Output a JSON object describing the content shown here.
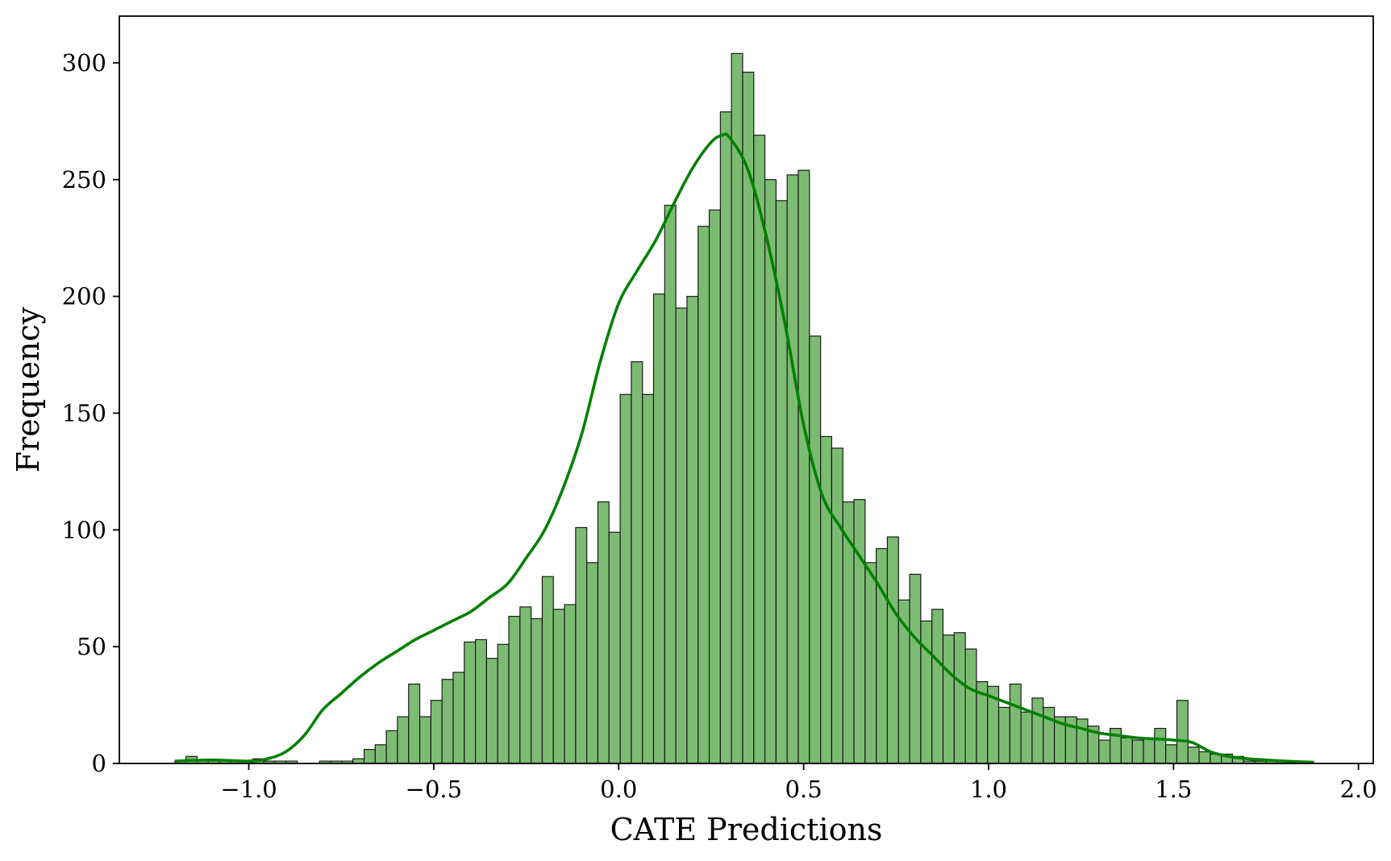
{
  "chart_data": {
    "type": "bar",
    "title": "",
    "xlabel": "CATE Predictions",
    "ylabel": "Frequency",
    "xlim": [
      -1.35,
      2.04
    ],
    "ylim": [
      0,
      320
    ],
    "xticks": [
      -1.0,
      -0.5,
      0.0,
      0.5,
      1.0,
      1.5,
      2.0
    ],
    "xtick_labels": [
      "−1.0",
      "−0.5",
      "0.0",
      "0.5",
      "1.0",
      "1.5",
      "2.0"
    ],
    "yticks": [
      0,
      50,
      100,
      150,
      200,
      250,
      300
    ],
    "ytick_labels": [
      "0",
      "50",
      "100",
      "150",
      "200",
      "250",
      "300"
    ],
    "bin_start": -1.2,
    "bin_width": 0.0301,
    "grid": false,
    "legend": false,
    "colors": {
      "bar": "#7cbc72",
      "bar_edge": "#1a1a1a",
      "kde": "#008000"
    },
    "values": [
      1,
      3,
      1,
      1,
      1,
      1,
      1,
      2,
      1,
      1,
      1,
      0,
      0,
      1,
      1,
      1,
      2,
      6,
      8,
      14,
      20,
      34,
      20,
      27,
      36,
      39,
      52,
      53,
      45,
      51,
      63,
      67,
      62,
      80,
      66,
      68,
      101,
      86,
      112,
      99,
      158,
      172,
      158,
      201,
      239,
      195,
      200,
      230,
      237,
      279,
      304,
      296,
      269,
      250,
      241,
      252,
      254,
      183,
      140,
      135,
      112,
      113,
      86,
      92,
      97,
      70,
      81,
      61,
      66,
      55,
      56,
      49,
      35,
      33,
      24,
      34,
      22,
      28,
      24,
      20,
      20,
      19,
      16,
      10,
      15,
      11,
      10,
      11,
      15,
      8,
      27,
      7,
      5,
      4,
      4,
      3,
      1,
      1,
      1,
      1,
      1,
      1
    ],
    "kde": {
      "x": [
        -1.2,
        -1.1,
        -1.0,
        -0.95,
        -0.9,
        -0.85,
        -0.8,
        -0.75,
        -0.7,
        -0.65,
        -0.6,
        -0.55,
        -0.5,
        -0.45,
        -0.4,
        -0.35,
        -0.3,
        -0.25,
        -0.2,
        -0.15,
        -0.1,
        -0.05,
        0.0,
        0.05,
        0.1,
        0.15,
        0.2,
        0.25,
        0.28,
        0.3,
        0.35,
        0.4,
        0.45,
        0.5,
        0.55,
        0.6,
        0.65,
        0.7,
        0.75,
        0.8,
        0.85,
        0.9,
        0.95,
        1.0,
        1.05,
        1.1,
        1.15,
        1.2,
        1.25,
        1.3,
        1.35,
        1.4,
        1.45,
        1.5,
        1.55,
        1.6,
        1.65,
        1.7,
        1.75,
        1.8,
        1.88
      ],
      "y": [
        1,
        1.5,
        1,
        2,
        5,
        12,
        23,
        30,
        37,
        43,
        48,
        53,
        57,
        61,
        65,
        71,
        77,
        88,
        100,
        118,
        141,
        172,
        197,
        211,
        224,
        240,
        255,
        266,
        269,
        268,
        254,
        225,
        188,
        145,
        115,
        101,
        89,
        77,
        64,
        54,
        46,
        38,
        32,
        29,
        26,
        23,
        20,
        17,
        15,
        13,
        12,
        11,
        10.5,
        10,
        9,
        5,
        3,
        2,
        1.5,
        1,
        0.5
      ]
    }
  }
}
